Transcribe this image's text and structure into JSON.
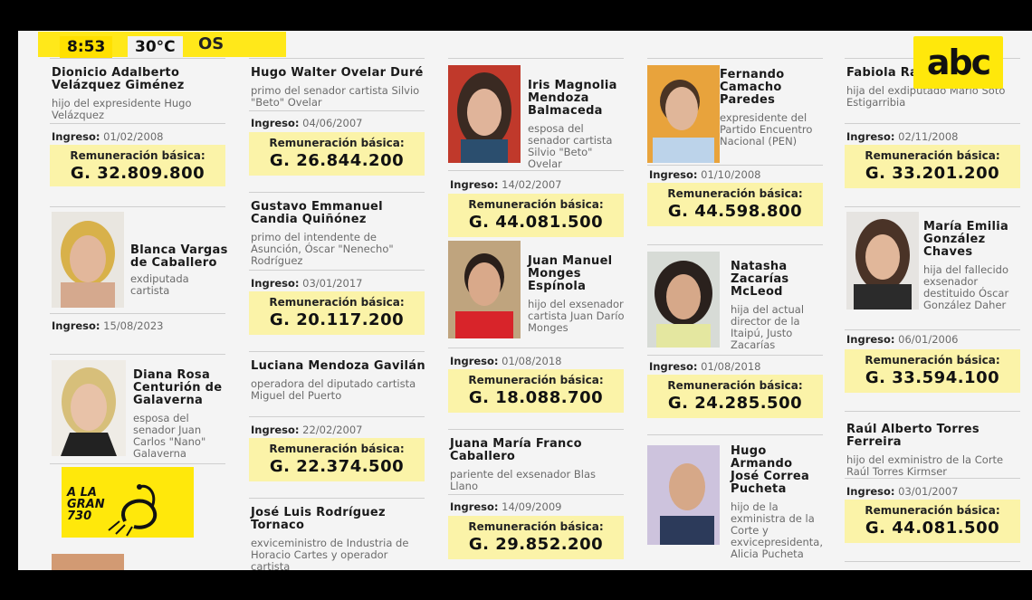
{
  "status": {
    "time": "8:53",
    "temp": "30°C",
    "header_fragment": "OS"
  },
  "brand": {
    "logo": "abc",
    "program": "A LA GRAN 730"
  },
  "rem_label": "Remuneración básica:",
  "ing_label": "Ingreso:",
  "cards": [
    {
      "name": "Dionicio Adalberto Velázquez Giménez",
      "desc": "hijo del expresidente Hugo Velázquez",
      "ingreso": "01/02/2008",
      "amount": "G. 32.809.800"
    },
    {
      "name": "Blanca Vargas de Caballero",
      "desc": "exdiputada cartista",
      "ingreso": "15/08/2023",
      "amount": ""
    },
    {
      "name": "Diana Rosa Centurión de Galaverna",
      "desc": "esposa del senador Juan Carlos \"Nano\" Galaverna",
      "ingreso": "",
      "amount": ""
    },
    {
      "name": "Hugo Walter Ovelar Duré",
      "desc": "primo del senador cartista Silvio \"Beto\" Ovelar",
      "ingreso": "04/06/2007",
      "amount": "G. 26.844.200"
    },
    {
      "name": "Gustavo Emmanuel Candia Quiñónez",
      "desc": "primo del intendente de Asunción, Óscar \"Nenecho\" Rodríguez",
      "ingreso": "03/01/2017",
      "amount": "G. 20.117.200"
    },
    {
      "name": "Luciana Mendoza Gavilán",
      "desc": "operadora del diputado cartista Miguel del Puerto",
      "ingreso": "22/02/2007",
      "amount": "G. 22.374.500"
    },
    {
      "name": "José Luis Rodríguez Tornaco",
      "desc": "exviceministro de Industria de Horacio Cartes y operador cartista",
      "ingreso": "",
      "amount": ""
    },
    {
      "name": "Iris Magnolia Mendoza Balmaceda",
      "desc": "esposa del senador cartista Silvio \"Beto\" Ovelar",
      "ingreso": "14/02/2007",
      "amount": "G. 44.081.500"
    },
    {
      "name": "Juan Manuel Monges Espínola",
      "desc": "hijo del exsenador cartista Juan Darío Monges",
      "ingreso": "01/08/2018",
      "amount": "G. 18.088.700"
    },
    {
      "name": "Juana María Franco Caballero",
      "desc": "pariente del exsenador Blas Llano",
      "ingreso": "14/09/2009",
      "amount": "G. 29.852.200"
    },
    {
      "name": "Fernando Camacho Paredes",
      "desc": "expresidente del Partido Encuentro Nacional (PEN)",
      "ingreso": "01/10/2008",
      "amount": "G. 44.598.800"
    },
    {
      "name": "Natasha Zacarías McLeod",
      "desc": "hija del actual director de la Itaipú, Justo Zacarías",
      "ingreso": "01/08/2018",
      "amount": "G. 24.285.500"
    },
    {
      "name": "Hugo Armando José Correa Pucheta",
      "desc": "hijo de la exministra de la Corte y exvicepresidenta, Alicia Pucheta",
      "ingreso": "",
      "amount": ""
    },
    {
      "name": "Fabiola Ra... Pavón",
      "desc": "hija del exdiputado Mario Soto Estigarribia",
      "ingreso": "02/11/2008",
      "amount": "G. 33.201.200"
    },
    {
      "name": "María Emilia González Chaves",
      "desc": "hija del fallecido exsenador destituido Óscar González Daher",
      "ingreso": "06/01/2006",
      "amount": "G. 33.594.100"
    },
    {
      "name": "Raúl Alberto Torres Ferreira",
      "desc": "hijo del exministro de la Corte Raúl Torres Kirmser",
      "ingreso": "03/01/2007",
      "amount": "G. 44.081.500"
    }
  ]
}
